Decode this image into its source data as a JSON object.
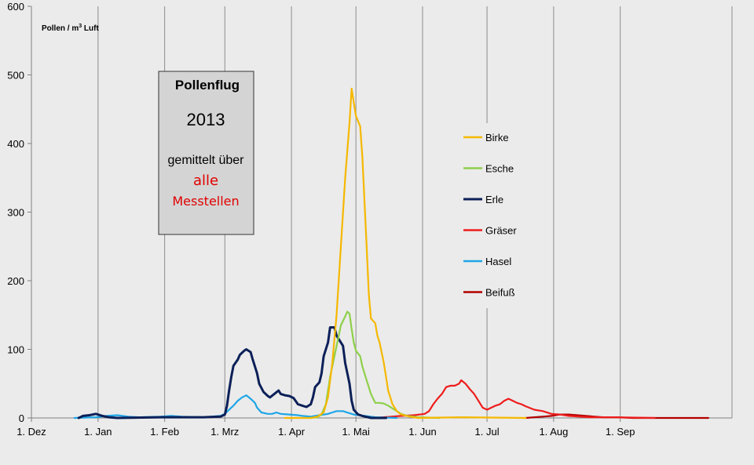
{
  "chart_data": {
    "type": "line",
    "ylabel_main": "Pollen / m",
    "ylabel_sup": "3",
    "ylabel_tail": " Luft",
    "ylim": [
      0,
      600
    ],
    "yticks": [
      0,
      100,
      200,
      300,
      400,
      500,
      600
    ],
    "xlim": [
      0,
      326
    ],
    "grid": {
      "vertical": true,
      "horizontal": false
    },
    "x_ticks": [
      {
        "label": "1. Dez",
        "day": 0
      },
      {
        "label": "1. Jan",
        "day": 31
      },
      {
        "label": "1. Feb",
        "day": 62
      },
      {
        "label": "1. Mrz",
        "day": 90
      },
      {
        "label": "1. Apr",
        "day": 121
      },
      {
        "label": "1. Mai",
        "day": 151
      },
      {
        "label": "1. Jun",
        "day": 182
      },
      {
        "label": "1. Jul",
        "day": 212
      },
      {
        "label": "1. Aug",
        "day": 243
      },
      {
        "label": "1. Sep",
        "day": 274
      }
    ],
    "legend_placement": "center-right",
    "series": [
      {
        "name": "Birke",
        "color": "#f5b800",
        "points": [
          [
            118,
            0
          ],
          [
            130,
            0
          ],
          [
            133,
            2
          ],
          [
            136,
            8
          ],
          [
            138,
            30
          ],
          [
            140,
            80
          ],
          [
            142,
            150
          ],
          [
            144,
            250
          ],
          [
            146,
            350
          ],
          [
            148,
            430
          ],
          [
            149,
            480
          ],
          [
            150,
            460
          ],
          [
            151,
            440
          ],
          [
            153,
            425
          ],
          [
            154,
            380
          ],
          [
            156,
            250
          ],
          [
            157,
            180
          ],
          [
            158,
            145
          ],
          [
            160,
            138
          ],
          [
            161,
            120
          ],
          [
            162,
            110
          ],
          [
            164,
            80
          ],
          [
            165,
            60
          ],
          [
            166,
            40
          ],
          [
            168,
            20
          ],
          [
            170,
            10
          ],
          [
            172,
            5
          ],
          [
            176,
            2
          ],
          [
            180,
            0
          ],
          [
            200,
            1
          ],
          [
            230,
            0
          ]
        ]
      },
      {
        "name": "Esche",
        "color": "#8ed04a",
        "points": [
          [
            130,
            0
          ],
          [
            133,
            1
          ],
          [
            135,
            5
          ],
          [
            137,
            20
          ],
          [
            139,
            60
          ],
          [
            141,
            90
          ],
          [
            143,
            120
          ],
          [
            144,
            135
          ],
          [
            146,
            148
          ],
          [
            147,
            155
          ],
          [
            148,
            152
          ],
          [
            149,
            130
          ],
          [
            150,
            110
          ],
          [
            151,
            98
          ],
          [
            153,
            90
          ],
          [
            154,
            75
          ],
          [
            156,
            55
          ],
          [
            158,
            35
          ],
          [
            160,
            22
          ],
          [
            162,
            22
          ],
          [
            164,
            21
          ],
          [
            166,
            18
          ],
          [
            168,
            14
          ],
          [
            170,
            10
          ],
          [
            172,
            6
          ],
          [
            175,
            3
          ],
          [
            180,
            1
          ],
          [
            190,
            0
          ]
        ]
      },
      {
        "name": "Erle",
        "color": "#0c2058",
        "points": [
          [
            22,
            0
          ],
          [
            24,
            3
          ],
          [
            27,
            4
          ],
          [
            30,
            6
          ],
          [
            33,
            3
          ],
          [
            36,
            1
          ],
          [
            40,
            0
          ],
          [
            60,
            1
          ],
          [
            80,
            1
          ],
          [
            88,
            2
          ],
          [
            90,
            5
          ],
          [
            91,
            18
          ],
          [
            92,
            40
          ],
          [
            93,
            60
          ],
          [
            94,
            76
          ],
          [
            96,
            85
          ],
          [
            97,
            92
          ],
          [
            99,
            98
          ],
          [
            100,
            100
          ],
          [
            102,
            96
          ],
          [
            103,
            85
          ],
          [
            105,
            65
          ],
          [
            106,
            50
          ],
          [
            108,
            38
          ],
          [
            110,
            32
          ],
          [
            111,
            30
          ],
          [
            113,
            35
          ],
          [
            115,
            40
          ],
          [
            116,
            35
          ],
          [
            118,
            33
          ],
          [
            120,
            32
          ],
          [
            122,
            29
          ],
          [
            124,
            20
          ],
          [
            126,
            18
          ],
          [
            128,
            16
          ],
          [
            130,
            20
          ],
          [
            131,
            30
          ],
          [
            132,
            45
          ],
          [
            134,
            52
          ],
          [
            135,
            65
          ],
          [
            136,
            90
          ],
          [
            138,
            110
          ],
          [
            139,
            132
          ],
          [
            141,
            132
          ],
          [
            142,
            120
          ],
          [
            143,
            115
          ],
          [
            145,
            105
          ],
          [
            146,
            80
          ],
          [
            148,
            50
          ],
          [
            149,
            25
          ],
          [
            150,
            12
          ],
          [
            152,
            5
          ],
          [
            154,
            3
          ],
          [
            158,
            0
          ],
          [
            165,
            0
          ]
        ]
      },
      {
        "name": "Gräser",
        "color": "#ee1c1c",
        "points": [
          [
            160,
            0
          ],
          [
            172,
            3
          ],
          [
            178,
            4
          ],
          [
            183,
            6
          ],
          [
            185,
            10
          ],
          [
            187,
            20
          ],
          [
            189,
            28
          ],
          [
            191,
            35
          ],
          [
            193,
            45
          ],
          [
            195,
            47
          ],
          [
            197,
            47
          ],
          [
            199,
            50
          ],
          [
            200,
            55
          ],
          [
            202,
            50
          ],
          [
            204,
            42
          ],
          [
            206,
            35
          ],
          [
            208,
            25
          ],
          [
            210,
            15
          ],
          [
            212,
            12
          ],
          [
            214,
            15
          ],
          [
            216,
            18
          ],
          [
            218,
            20
          ],
          [
            220,
            25
          ],
          [
            222,
            28
          ],
          [
            224,
            25
          ],
          [
            226,
            22
          ],
          [
            228,
            20
          ],
          [
            230,
            17
          ],
          [
            234,
            12
          ],
          [
            238,
            10
          ],
          [
            242,
            6
          ],
          [
            246,
            5
          ],
          [
            250,
            3
          ],
          [
            255,
            2
          ],
          [
            260,
            1
          ],
          [
            270,
            1
          ],
          [
            290,
            0
          ]
        ]
      },
      {
        "name": "Hasel",
        "color": "#1ea6e6",
        "points": [
          [
            20,
            0
          ],
          [
            30,
            1
          ],
          [
            35,
            3
          ],
          [
            40,
            4
          ],
          [
            45,
            2
          ],
          [
            50,
            1
          ],
          [
            60,
            2
          ],
          [
            65,
            3
          ],
          [
            70,
            2
          ],
          [
            80,
            1
          ],
          [
            88,
            3
          ],
          [
            90,
            6
          ],
          [
            92,
            12
          ],
          [
            94,
            18
          ],
          [
            96,
            25
          ],
          [
            98,
            30
          ],
          [
            100,
            33
          ],
          [
            102,
            28
          ],
          [
            104,
            22
          ],
          [
            105,
            15
          ],
          [
            107,
            8
          ],
          [
            110,
            6
          ],
          [
            112,
            6
          ],
          [
            114,
            8
          ],
          [
            116,
            6
          ],
          [
            120,
            5
          ],
          [
            124,
            4
          ],
          [
            126,
            3
          ],
          [
            130,
            2
          ],
          [
            134,
            4
          ],
          [
            138,
            6
          ],
          [
            140,
            8
          ],
          [
            142,
            10
          ],
          [
            145,
            10
          ],
          [
            148,
            7
          ],
          [
            150,
            5
          ],
          [
            155,
            3
          ],
          [
            160,
            1
          ],
          [
            170,
            0
          ]
        ]
      },
      {
        "name": "Beifuß",
        "color": "#b30000",
        "points": [
          [
            230,
            0
          ],
          [
            234,
            1
          ],
          [
            238,
            2
          ],
          [
            242,
            3
          ],
          [
            246,
            5
          ],
          [
            250,
            5
          ],
          [
            254,
            4
          ],
          [
            258,
            3
          ],
          [
            262,
            2
          ],
          [
            266,
            1
          ],
          [
            272,
            1
          ],
          [
            280,
            0
          ],
          [
            300,
            0
          ],
          [
            315,
            0
          ]
        ]
      }
    ]
  },
  "infobox": {
    "title": "Pollenflug",
    "year": "2013",
    "subtitle": "gemittelt über",
    "red1": "alle",
    "red2": "Messtellen"
  }
}
